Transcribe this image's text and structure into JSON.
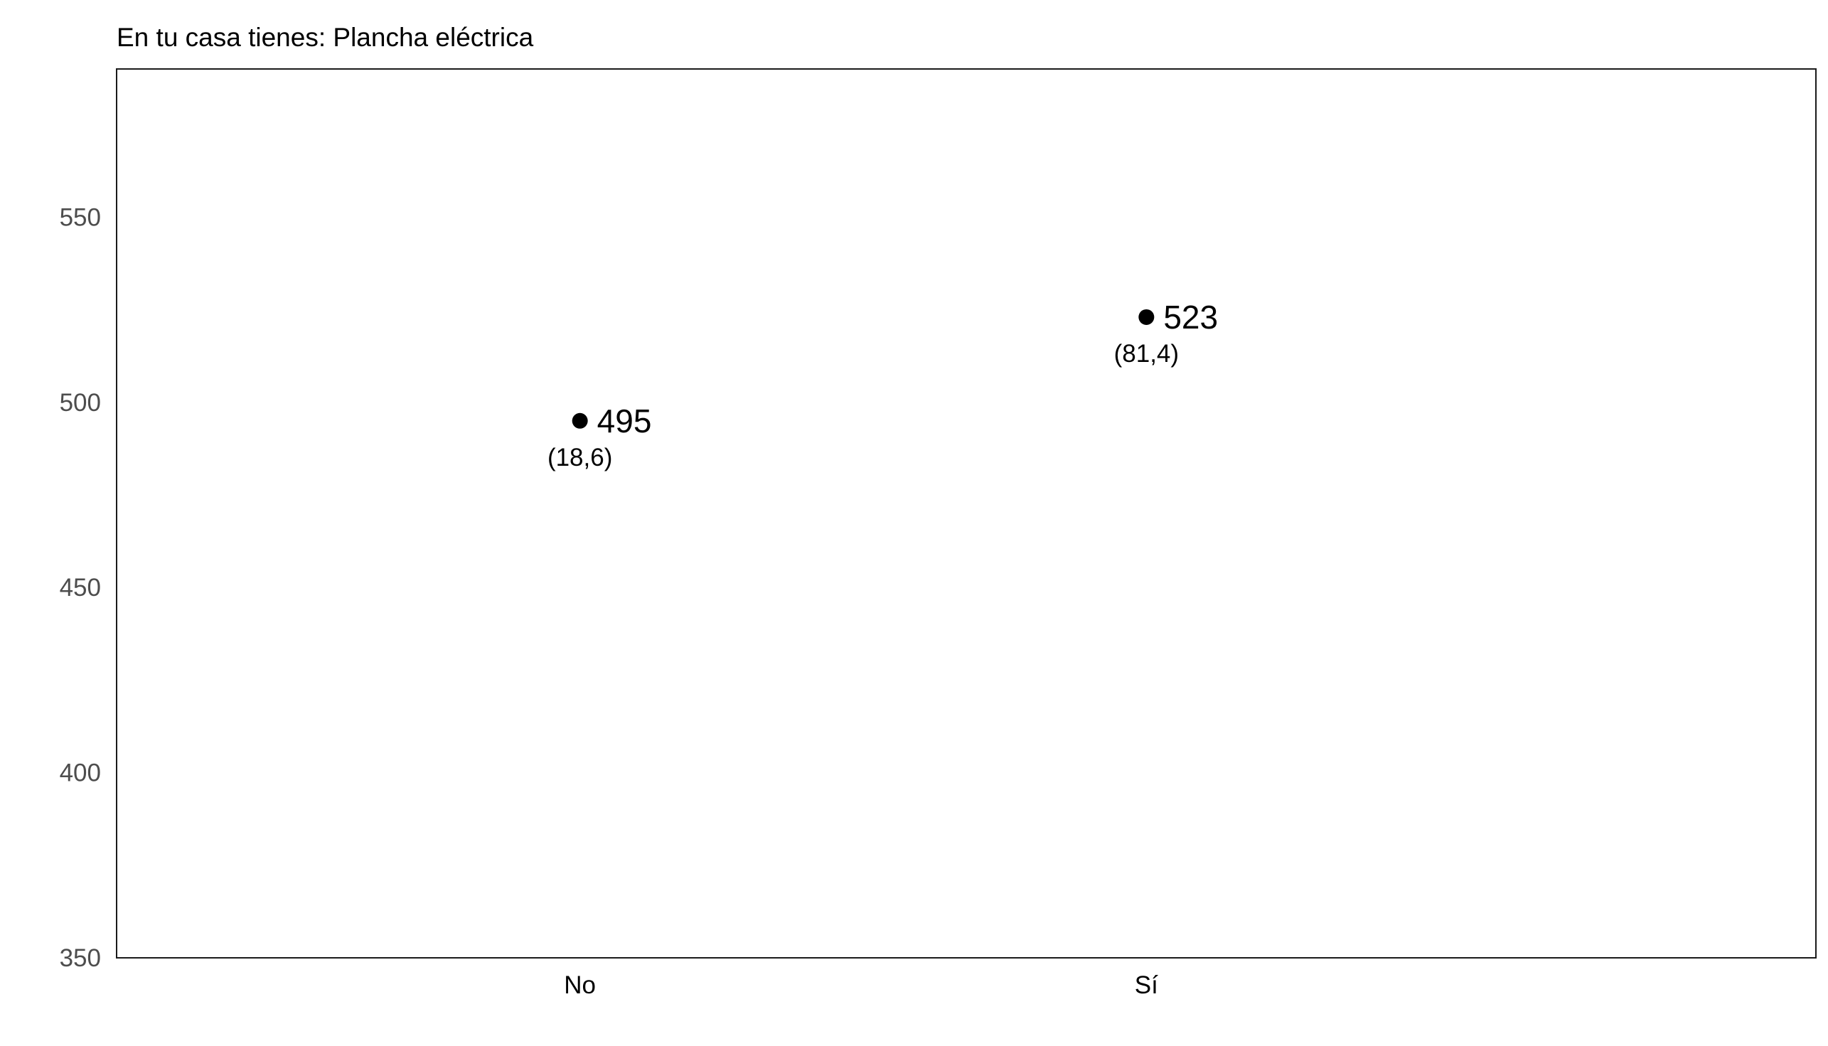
{
  "chart_data": {
    "type": "scatter",
    "title": "En tu casa tienes: Plancha eléctrica",
    "xlabel": "",
    "ylabel": "",
    "categories": [
      "No",
      "Sí"
    ],
    "values": [
      495,
      523
    ],
    "value_labels": [
      "495",
      "523"
    ],
    "secondary_labels": [
      "(18,6)",
      "(81,4)"
    ],
    "ylim": [
      350,
      590
    ],
    "yticks": [
      350,
      400,
      450,
      500,
      550
    ],
    "grid": false,
    "legend": "none",
    "point_color": "#000000",
    "axis_text_color": "#4d4d4d"
  }
}
